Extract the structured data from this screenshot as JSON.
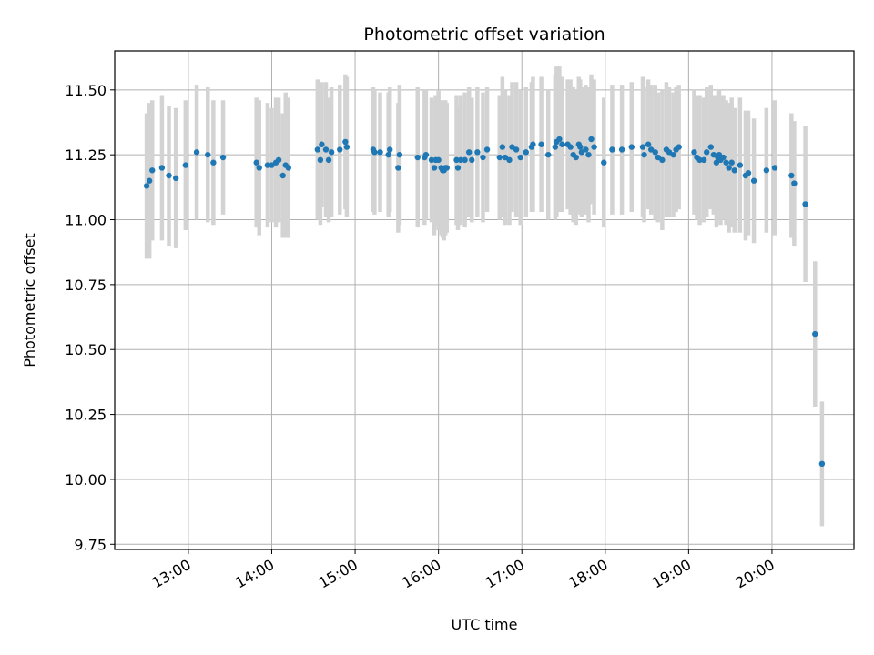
{
  "chart_data": {
    "type": "scatter",
    "title": "Photometric offset variation",
    "xlabel": "UTC time",
    "ylabel": "Photometric offset",
    "x_ticks": [
      "13:00",
      "14:00",
      "15:00",
      "16:00",
      "17:00",
      "18:00",
      "19:00",
      "20:00"
    ],
    "y_ticks": [
      "9.75",
      "10.00",
      "10.25",
      "10.50",
      "10.75",
      "11.00",
      "11.25",
      "11.50"
    ],
    "xlim": [
      "12:07",
      "20:59"
    ],
    "ylim": [
      9.73,
      11.65
    ],
    "grid": true,
    "colors": {
      "point": "#1f77b4",
      "errorbar": "#d3d3d3",
      "grid": "#b0b0b0"
    },
    "series": [
      {
        "x": [
          "12:30",
          "12:32",
          "12:34",
          "12:41",
          "12:46",
          "12:51",
          "12:58",
          "13:06",
          "13:14",
          "13:18",
          "13:25",
          "13:49",
          "13:51",
          "13:57",
          "14:00",
          "14:03",
          "14:05",
          "14:08",
          "14:10",
          "14:12",
          "14:33",
          "14:35",
          "14:36",
          "14:39",
          "14:41",
          "14:43",
          "14:49",
          "14:53",
          "14:54",
          "15:13",
          "15:14",
          "15:18",
          "15:24",
          "15:25",
          "15:31",
          "15:32",
          "15:45",
          "15:50",
          "15:51",
          "15:55",
          "15:57",
          "15:58",
          "16:00",
          "16:02",
          "16:03",
          "16:04",
          "16:05",
          "16:06",
          "16:13",
          "16:14",
          "16:16",
          "16:19",
          "16:22",
          "16:24",
          "16:28",
          "16:32",
          "16:35",
          "16:44",
          "16:46",
          "16:48",
          "16:51",
          "16:53",
          "16:56",
          "16:59",
          "17:03",
          "17:07",
          "17:08",
          "17:14",
          "17:19",
          "17:24",
          "17:25",
          "17:27",
          "17:29",
          "17:33",
          "17:35",
          "17:37",
          "17:39",
          "17:41",
          "17:42",
          "17:43",
          "17:46",
          "17:48",
          "17:50",
          "17:52",
          "17:59",
          "18:05",
          "18:12",
          "18:19",
          "18:27",
          "18:28",
          "18:31",
          "18:33",
          "18:36",
          "18:38",
          "18:41",
          "18:44",
          "18:46",
          "18:49",
          "18:51",
          "18:53",
          "19:04",
          "19:06",
          "19:08",
          "19:11",
          "19:13",
          "19:16",
          "19:18",
          "19:20",
          "19:21",
          "19:22",
          "19:23",
          "19:25",
          "19:27",
          "19:29",
          "19:31",
          "19:33",
          "19:37",
          "19:41",
          "19:43",
          "19:47",
          "19:56",
          "20:02",
          "20:14",
          "20:16",
          "20:24",
          "20:31",
          "20:36"
        ],
        "y": [
          11.13,
          11.15,
          11.19,
          11.2,
          11.17,
          11.16,
          11.21,
          11.26,
          11.25,
          11.22,
          11.24,
          11.22,
          11.2,
          11.21,
          11.21,
          11.22,
          11.23,
          11.17,
          11.21,
          11.2,
          11.27,
          11.23,
          11.29,
          11.27,
          11.23,
          11.26,
          11.27,
          11.3,
          11.28,
          11.27,
          11.26,
          11.26,
          11.25,
          11.27,
          11.2,
          11.25,
          11.24,
          11.24,
          11.25,
          11.23,
          11.2,
          11.23,
          11.23,
          11.2,
          11.19,
          11.19,
          11.2,
          11.2,
          11.23,
          11.2,
          11.23,
          11.23,
          11.26,
          11.23,
          11.26,
          11.24,
          11.27,
          11.24,
          11.28,
          11.24,
          11.23,
          11.28,
          11.27,
          11.24,
          11.26,
          11.28,
          11.29,
          11.29,
          11.25,
          11.28,
          11.3,
          11.31,
          11.29,
          11.29,
          11.28,
          11.25,
          11.24,
          11.29,
          11.28,
          11.26,
          11.27,
          11.25,
          11.31,
          11.28,
          11.22,
          11.27,
          11.27,
          11.28,
          11.28,
          11.25,
          11.29,
          11.27,
          11.26,
          11.24,
          11.23,
          11.27,
          11.26,
          11.25,
          11.27,
          11.28,
          11.26,
          11.24,
          11.23,
          11.23,
          11.26,
          11.28,
          11.25,
          11.22,
          11.24,
          11.25,
          11.23,
          11.24,
          11.22,
          11.2,
          11.22,
          11.19,
          11.21,
          11.17,
          11.18,
          11.15,
          11.19,
          11.2,
          11.17,
          11.14,
          11.06,
          10.56,
          10.06
        ],
        "err": [
          0.28,
          0.3,
          0.27,
          0.28,
          0.27,
          0.27,
          0.25,
          0.26,
          0.26,
          0.24,
          0.22,
          0.25,
          0.26,
          0.24,
          0.22,
          0.25,
          0.24,
          0.24,
          0.28,
          0.27,
          0.27,
          0.25,
          0.24,
          0.26,
          0.24,
          0.25,
          0.25,
          0.26,
          0.27,
          0.24,
          0.24,
          0.23,
          0.24,
          0.24,
          0.25,
          0.27,
          0.27,
          0.26,
          0.25,
          0.24,
          0.26,
          0.25,
          0.27,
          0.26,
          0.26,
          0.27,
          0.26,
          0.25,
          0.25,
          0.24,
          0.25,
          0.26,
          0.25,
          0.24,
          0.25,
          0.25,
          0.24,
          0.24,
          0.27,
          0.26,
          0.25,
          0.25,
          0.26,
          0.26,
          0.25,
          0.25,
          0.26,
          0.26,
          0.25,
          0.28,
          0.29,
          0.28,
          0.26,
          0.25,
          0.26,
          0.26,
          0.26,
          0.26,
          0.26,
          0.25,
          0.25,
          0.26,
          0.25,
          0.26,
          0.25,
          0.25,
          0.25,
          0.25,
          0.27,
          0.26,
          0.25,
          0.25,
          0.26,
          0.25,
          0.27,
          0.26,
          0.25,
          0.24,
          0.24,
          0.24,
          0.24,
          0.24,
          0.25,
          0.24,
          0.25,
          0.24,
          0.23,
          0.25,
          0.24,
          0.25,
          0.25,
          0.24,
          0.24,
          0.25,
          0.25,
          0.24,
          0.26,
          0.25,
          0.24,
          0.24,
          0.24,
          0.26,
          0.24,
          0.24,
          0.3,
          0.28,
          0.24
        ]
      }
    ]
  }
}
